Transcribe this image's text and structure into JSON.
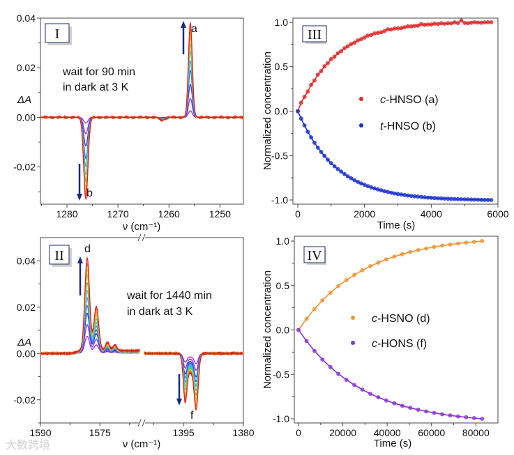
{
  "watermark": "大数跨境",
  "chart_data": [
    {
      "panel": "I",
      "type": "line",
      "panel_label": "I",
      "xlabel": "ν (cm⁻¹)",
      "ylabel": "ΔA",
      "xlim": [
        1285.2,
        1245.4
      ],
      "ylim": [
        -0.035,
        0.04
      ],
      "xticks": [
        1280,
        1270,
        1260,
        1250
      ],
      "xtick_labels": [
        "1280",
        "1270",
        "1260",
        "1250"
      ],
      "xminor": [
        1285,
        1275,
        1265,
        1255
      ],
      "yticks": [
        -0.02,
        0,
        0.02,
        0.04
      ],
      "ytick_labels": [
        "-0.02",
        "0.00",
        "0.02",
        "0.04"
      ],
      "yminor": [
        -0.03,
        -0.01,
        0.01,
        0.03
      ],
      "annotation": [
        "wait for 90 min",
        "in dark at 3 K"
      ],
      "peak_labels": [
        "a",
        "b"
      ],
      "peaks": [
        {
          "center": 1255.8,
          "amp": 0.038,
          "width": 0.38
        },
        {
          "center": 1276.3,
          "amp": -0.033,
          "width": 0.42
        },
        {
          "center": 1261.3,
          "amp": -0.0012,
          "width": 0.5
        }
      ],
      "scales": [
        0.07,
        0.2,
        0.35,
        0.5,
        0.6,
        0.7,
        0.78,
        0.85,
        0.9,
        0.95,
        1.0
      ],
      "colors": [
        "#9b30e0",
        "#7a3ef0",
        "#3a3ad8",
        "#2f6ef0",
        "#3fa0f0",
        "#40d0d0",
        "#50c878",
        "#a0d040",
        "#f0c020",
        "#f08020",
        "#e02020"
      ],
      "arrow_color": "#1a2a80"
    },
    {
      "panel": "II",
      "type": "line",
      "panel_label": "II",
      "xlabel": "ν (cm⁻¹)",
      "ylabel": "ΔA",
      "broken_x": [
        [
          1590,
          1565
        ],
        [
          1404.8,
          1380
        ]
      ],
      "ylim": [
        -0.03,
        0.05
      ],
      "xticks": [
        1590,
        1575,
        1395,
        1380
      ],
      "xtick_labels": [
        "1590",
        "1575",
        "1395",
        "1380"
      ],
      "xminor": [
        1582.5,
        1567.5,
        1402.5,
        1387.5
      ],
      "yticks": [
        -0.02,
        0,
        0.02,
        0.04
      ],
      "ytick_labels": [
        "-0.02",
        "0.00",
        "0.02",
        "0.04"
      ],
      "yminor": [
        -0.03,
        -0.01,
        0.01,
        0.03
      ],
      "annotation": [
        "wait for 1440 min",
        "in dark at 3 K"
      ],
      "peak_labels": [
        "d",
        "f"
      ],
      "peaks": [
        {
          "center": 1578.2,
          "amp": 0.04,
          "width": 0.6
        },
        {
          "center": 1575.9,
          "amp": 0.019,
          "width": 0.6
        },
        {
          "center": 1573.1,
          "amp": 0.0035,
          "width": 0.5
        },
        {
          "center": 1571.2,
          "amp": 0.0025,
          "width": 0.5
        },
        {
          "center": 1394.6,
          "amp": -0.018,
          "width": 0.45
        },
        {
          "center": 1391.8,
          "amp": -0.021,
          "width": 0.5
        },
        {
          "center": 1393.2,
          "amp": -0.008,
          "width": 1.0
        }
      ],
      "scales": [
        0.18,
        0.3,
        0.42,
        0.5,
        0.58,
        0.66,
        0.74,
        0.82,
        0.88,
        0.94,
        1.0
      ],
      "colors": [
        "#9b30e0",
        "#7a3ef0",
        "#3a3ad8",
        "#2f6ef0",
        "#3fa0f0",
        "#40d0d0",
        "#50c878",
        "#a0d040",
        "#f0c020",
        "#f08020",
        "#e02020"
      ],
      "arrow_color": "#1a2a80"
    },
    {
      "panel": "III",
      "type": "scatter",
      "panel_label": "III",
      "xlabel": "Time (s)",
      "ylabel": "Normalized concentration",
      "xlim": [
        -146,
        6000
      ],
      "ylim": [
        -1.047,
        1.047
      ],
      "xticks": [
        0,
        2000,
        4000,
        6000
      ],
      "xtick_labels": [
        "0",
        "2000",
        "4000",
        "6000"
      ],
      "xminor": [
        1000,
        3000,
        5000
      ],
      "yticks": [
        -1,
        -0.5,
        0,
        0.5,
        1
      ],
      "ytick_labels": [
        "-1.0",
        "-0.5",
        "0.0",
        "0.5",
        "1.0"
      ],
      "yminor": [
        -0.75,
        -0.25,
        0.25,
        0.75
      ],
      "x": [
        0,
        100,
        200,
        300,
        400,
        500,
        600,
        700,
        800,
        900,
        1000,
        1100,
        1200,
        1300,
        1400,
        1500,
        1600,
        1700,
        1800,
        1900,
        2000,
        2100,
        2200,
        2300,
        2400,
        2500,
        2600,
        2700,
        2800,
        2900,
        3000,
        3100,
        3200,
        3300,
        3400,
        3500,
        3600,
        3700,
        3800,
        3900,
        4000,
        4100,
        4200,
        4300,
        4400,
        4500,
        4600,
        4700,
        4800,
        4900,
        5000,
        5100,
        5200,
        5300,
        5400,
        5500,
        5600,
        5700,
        5800
      ],
      "series": [
        {
          "name_prefix": "c",
          "name_rest": "-HNSO (a)",
          "color": "#e02828",
          "sign": 1,
          "values": [
            0,
            0.095,
            0.161,
            0.22,
            0.296,
            0.345,
            0.41,
            0.45,
            0.504,
            0.54,
            0.585,
            0.612,
            0.652,
            0.675,
            0.709,
            0.73,
            0.756,
            0.77,
            0.796,
            0.81,
            0.829,
            0.85,
            0.858,
            0.875,
            0.881,
            0.888,
            0.901,
            0.92,
            0.918,
            0.93,
            0.932,
            0.935,
            0.944,
            0.955,
            0.954,
            0.96,
            0.962,
            0.98,
            0.97,
            0.975,
            0.975,
            0.985,
            0.98,
            0.99,
            0.984,
            0.99,
            0.988,
            1.0,
            0.991,
            1.02,
            0.993,
            0.99,
            0.995,
            1.0,
            0.997,
            0.995,
            0.999,
            1.0,
            1.0
          ]
        },
        {
          "name_prefix": "t",
          "name_rest": "-HNSO (b)",
          "color": "#1a30d0",
          "sign": -1,
          "values": [
            0,
            -0.084,
            -0.161,
            -0.231,
            -0.296,
            -0.355,
            -0.41,
            -0.459,
            -0.504,
            -0.547,
            -0.585,
            -0.62,
            -0.652,
            -0.681,
            -0.709,
            -0.734,
            -0.756,
            -0.777,
            -0.796,
            -0.814,
            -0.829,
            -0.844,
            -0.858,
            -0.87,
            -0.881,
            -0.892,
            -0.901,
            -0.91,
            -0.918,
            -0.926,
            -0.932,
            -0.939,
            -0.944,
            -0.949,
            -0.954,
            -0.958,
            -0.962,
            -0.966,
            -0.97,
            -0.973,
            -0.975,
            -0.978,
            -0.98,
            -0.982,
            -0.984,
            -0.986,
            -0.988,
            -0.989,
            -0.991,
            -0.992,
            -0.993,
            -0.994,
            -0.995,
            -0.996,
            -0.997,
            -0.998,
            -0.999,
            -0.999,
            -1.0
          ]
        }
      ]
    },
    {
      "panel": "IV",
      "type": "scatter",
      "panel_label": "IV",
      "xlabel": "Time (s)",
      "ylabel": "Normalized concentration",
      "xlim": [
        -1890,
        89970
      ],
      "ylim": [
        -1.047,
        1.055
      ],
      "xticks": [
        0,
        20000,
        40000,
        60000,
        80000
      ],
      "xtick_labels": [
        "0",
        "20000",
        "40000",
        "60000",
        "80000"
      ],
      "xminor": [
        10000,
        30000,
        50000,
        70000
      ],
      "yticks": [
        -1,
        -0.5,
        0,
        0.5,
        1
      ],
      "ytick_labels": [
        "-1.0",
        "-0.5",
        "0.0",
        "0.5",
        "1.0"
      ],
      "yminor": [
        -0.75,
        -0.25,
        0.25,
        0.75
      ],
      "x": [
        0,
        3600,
        7200,
        10800,
        14400,
        18000,
        21600,
        25200,
        28800,
        32400,
        36000,
        39600,
        43200,
        46800,
        50400,
        54000,
        57600,
        61200,
        64800,
        68400,
        72000,
        75600,
        79200,
        82800
      ],
      "series": [
        {
          "name_prefix": "c",
          "name_rest": "-HSNO (d)",
          "color": "#f0922e",
          "values": [
            0,
            0.125,
            0.236,
            0.333,
            0.419,
            0.495,
            0.561,
            0.62,
            0.672,
            0.718,
            0.758,
            0.794,
            0.825,
            0.853,
            0.877,
            0.898,
            0.917,
            0.934,
            0.949,
            0.962,
            0.973,
            0.983,
            0.992,
            1.0
          ]
        },
        {
          "name_prefix": "c",
          "name_rest": "-HONS (f)",
          "color": "#8a30d8",
          "values": [
            0,
            -0.125,
            -0.236,
            -0.333,
            -0.419,
            -0.495,
            -0.561,
            -0.62,
            -0.672,
            -0.718,
            -0.758,
            -0.794,
            -0.825,
            -0.853,
            -0.877,
            -0.898,
            -0.917,
            -0.934,
            -0.949,
            -0.962,
            -0.973,
            -0.983,
            -0.992,
            -1.0
          ]
        }
      ]
    }
  ]
}
